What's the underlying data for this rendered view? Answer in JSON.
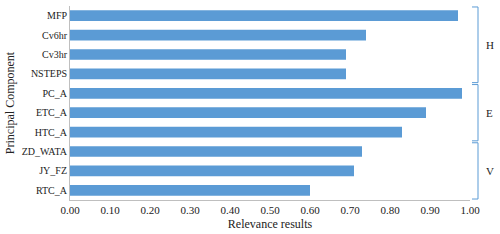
{
  "chart_data": {
    "type": "bar",
    "orientation": "horizontal",
    "x_label": "Relevance results",
    "y_label": "Principal Component",
    "categories": [
      "MFP",
      "Cv6hr",
      "Cv3hr",
      "NSTEPS",
      "PC_A",
      "ETC_A",
      "HTC_A",
      "ZD_WATA",
      "JY_FZ",
      "RTC_A"
    ],
    "values": [
      0.97,
      0.74,
      0.69,
      0.69,
      0.98,
      0.89,
      0.83,
      0.73,
      0.71,
      0.6
    ],
    "color": "#5b9bd5",
    "xlim": [
      0,
      1
    ],
    "xticks": [
      {
        "value": 0,
        "label": "0.00"
      },
      {
        "value": 0.1,
        "label": "0.10"
      },
      {
        "value": 0.2,
        "label": "0.20"
      },
      {
        "value": 0.3,
        "label": "0.30"
      },
      {
        "value": 0.4,
        "label": "0.40"
      },
      {
        "value": 0.5,
        "label": "0.50"
      },
      {
        "value": 0.6,
        "label": "0.60"
      },
      {
        "value": 0.7,
        "label": "0.70"
      },
      {
        "value": 0.8,
        "label": "0.80"
      },
      {
        "value": 0.9,
        "label": "0.90"
      },
      {
        "value": 1,
        "label": "1.00"
      }
    ],
    "grid": false,
    "annotations": [
      {
        "text": "H",
        "start": "MFP",
        "end": "NSTEPS"
      },
      {
        "text": "E",
        "start": "PC_A",
        "end": "HTC_A"
      },
      {
        "text": "V",
        "start": "ZD_WATA",
        "end": "RTC_A"
      }
    ]
  }
}
